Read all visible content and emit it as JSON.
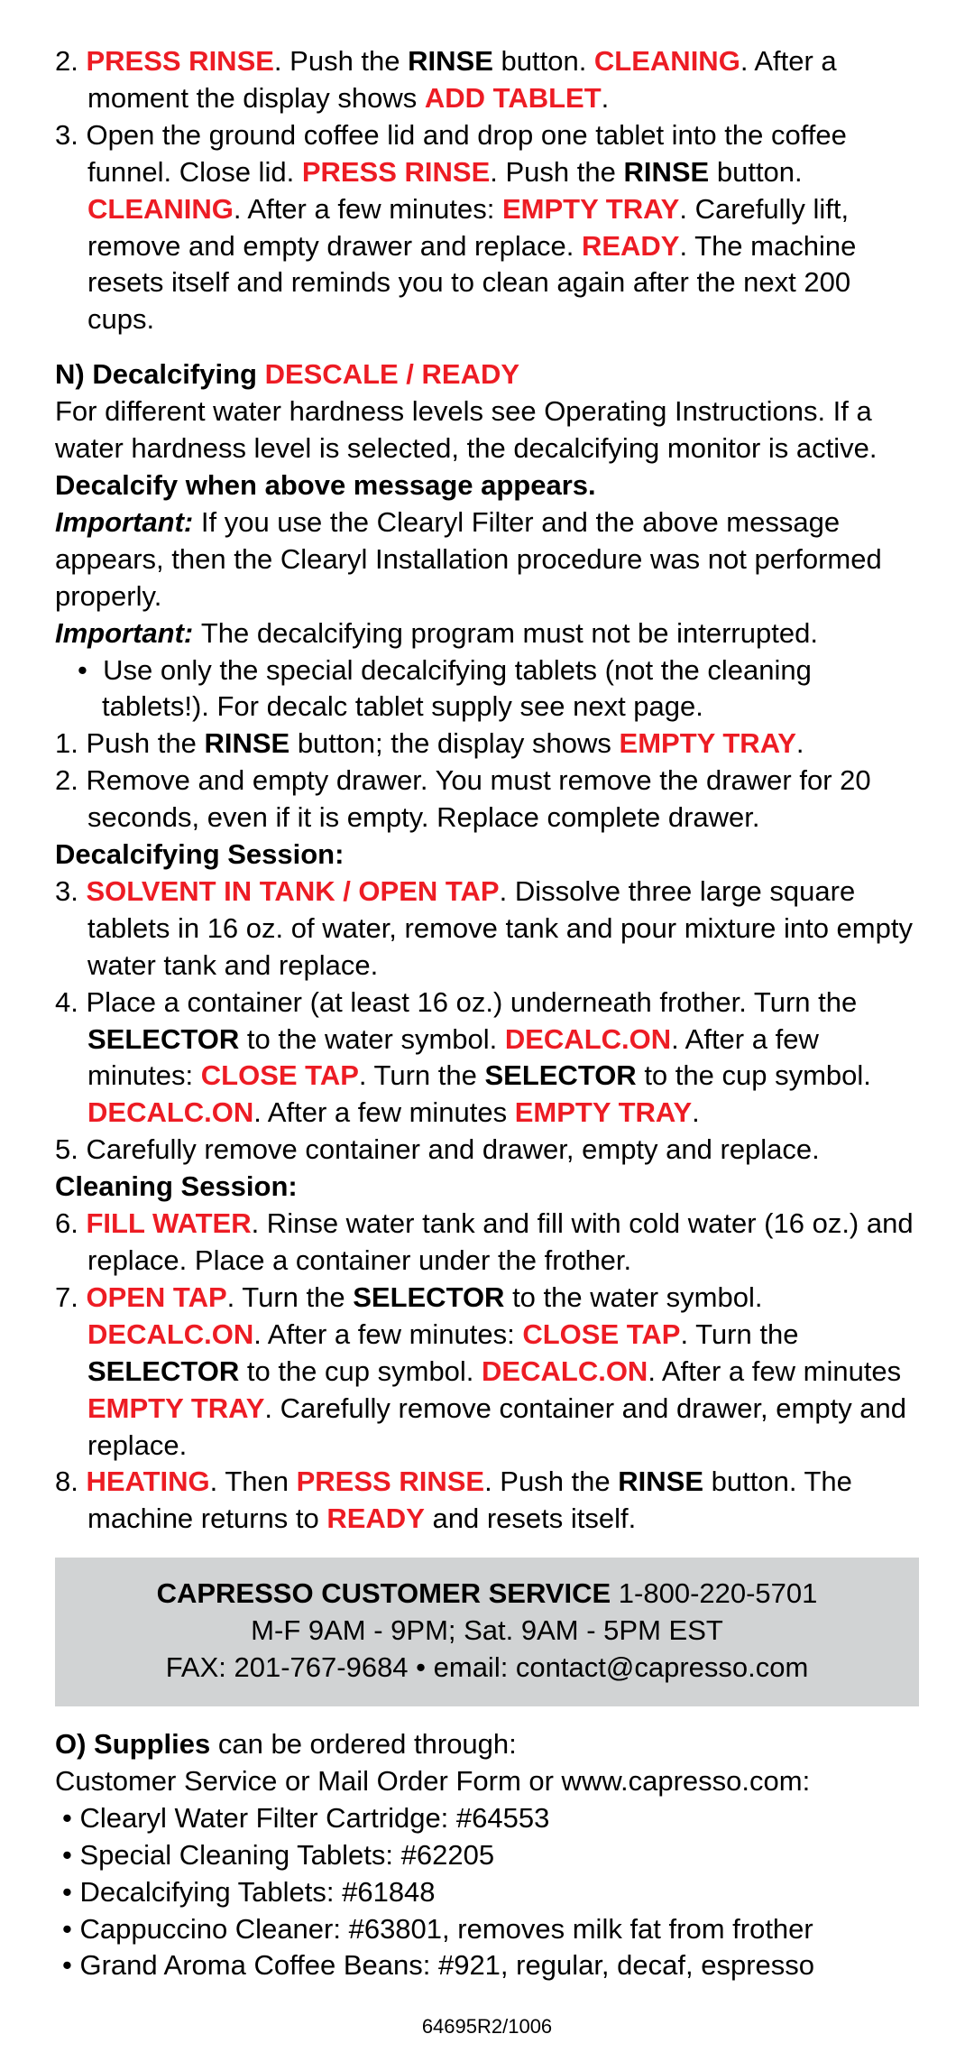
{
  "red_color": "#ed1c24",
  "step2": {
    "n": "2. ",
    "press_rinse": "PRESS RINSE",
    "t1": ". Push the ",
    "rinse": "RINSE",
    "t2": " button. ",
    "cleaning": "CLEANING",
    "t3": ". After a moment  the display shows ",
    "add_tablet": "ADD TABLET",
    "t4": "."
  },
  "step3": {
    "n": "3. ",
    "t1": "Open the ground coffee lid and drop one tablet into the coffee funnel. Close lid.  ",
    "press_rinse": "PRESS RINSE",
    "t2": ". Push the ",
    "rinse": "RINSE",
    "t3": " button. ",
    "cleaning": "CLEANING",
    "t4": ". After a few minutes: ",
    "empty_tray": "EMPTY TRAY",
    "t5": ". Carefully lift, remove and empty drawer and replace. ",
    "ready": "READY",
    "t6": ". The machine resets itself and reminds you to clean again after the next 200 cups."
  },
  "N": {
    "heading_black": "N) Decalcifying  ",
    "heading_red": "DESCALE / READY",
    "p1a": "For different water hardness levels see Operating Instructions. If a water hardness level is selected, the decalcifying monitor is active. ",
    "p1b_bold": "Decalcify when above message appears.",
    "imp1_label": "Important: ",
    "imp1_text": "If you use the Clearyl Filter and the above message appears, then the Clearyl Installation procedure was not performed properly.",
    "imp2_label": "Important: ",
    "imp2_text": "The decalcifying program must not be interrupted.",
    "bullet1": "Use only the special decalcifying tablets (not the cleaning tablets!). For decalc tablet supply see next page.",
    "s1": {
      "n": "1. ",
      "t1": "Push the ",
      "rinse": "RINSE",
      "t2": " button; the display shows ",
      "empty": "EMPTY TRAY",
      "t3": "."
    },
    "s2": {
      "n": "2. ",
      "t": "Remove and empty drawer. You must remove the drawer for 20 seconds, even if it is empty. Replace complete drawer."
    },
    "decal_session": "Decalcifying Session:",
    "s3": {
      "n": "3. ",
      "solvent": "SOLVENT IN TANK / OPEN TAP",
      "t": ". Dissolve three large square tablets in 16 oz. of water, remove tank and pour mixture into empty water tank and replace."
    },
    "s4": {
      "n": "4. ",
      "t1": "Place a container (at least 16 oz.) underneath frother. Turn the ",
      "sel1": "SELECTOR",
      "t2": " to the water symbol. ",
      "decalc1": "DECALC.ON",
      "t3": ". After a few minutes: ",
      "close": "CLOSE TAP",
      "t4": ". Turn the ",
      "sel2": "SELECTOR",
      "t5": " to the cup symbol. ",
      "decalc2": "DECALC.ON",
      "t6": ". After a few minutes ",
      "empty": "EMPTY TRAY",
      "t7": "."
    },
    "s5": {
      "n": "5. ",
      "t": "Carefully remove container and drawer, empty and replace."
    },
    "clean_session": "Cleaning Session:",
    "s6": {
      "n": "6. ",
      "fill": "FILL WATER",
      "t": ". Rinse water tank and fill with cold water (16 oz.) and replace. Place a container under the frother."
    },
    "s7": {
      "n": "7. ",
      "open": "OPEN TAP",
      "t1": ". Turn the ",
      "sel1": "SELECTOR",
      "t2": " to the water symbol. ",
      "decalc1": "DECALC.ON",
      "t3": ".  After a few minutes: ",
      "close": "CLOSE TAP",
      "t4": ". Turn the ",
      "sel2": "SELECTOR",
      "t5": " to  the cup symbol. ",
      "decalc2": "DECALC.ON",
      "t6": ". After a few minutes ",
      "empty": "EMPTY TRAY",
      "t7": ". Carefully remove container and drawer, empty and replace."
    },
    "s8": {
      "n": "8. ",
      "heating": "HEATING",
      "t1": ". Then ",
      "press_rinse": "PRESS RINSE",
      "t2": ". Push the ",
      "rinse": "RINSE",
      "t3": " button. The machine returns to ",
      "ready": "READY",
      "t4": " and resets itself."
    }
  },
  "service": {
    "title": "CAPRESSO CUSTOMER  SERVICE ",
    "phone": "1-800-220-5701",
    "hours": "M-F 9AM - 9PM;  Sat. 9AM - 5PM EST",
    "fax": "FAX: 201-767-9684 • email: contact@capresso.com"
  },
  "O": {
    "heading": "O) Supplies ",
    "heading_tail": "can be ordered through:",
    "line": "Customer Service or Mail Order Form or www.capresso.com:",
    "i1": "• Clearyl Water Filter Cartridge: #64553",
    "i2": "• Special Cleaning Tablets: #62205",
    "i3": "• Decalcifying Tablets: #61848",
    "i4": "• Cappuccino Cleaner: #63801, removes milk fat from frother",
    "i5": "• Grand Aroma Coffee Beans: #921, regular, decaf, espresso"
  },
  "footer": "64695R2/1006"
}
